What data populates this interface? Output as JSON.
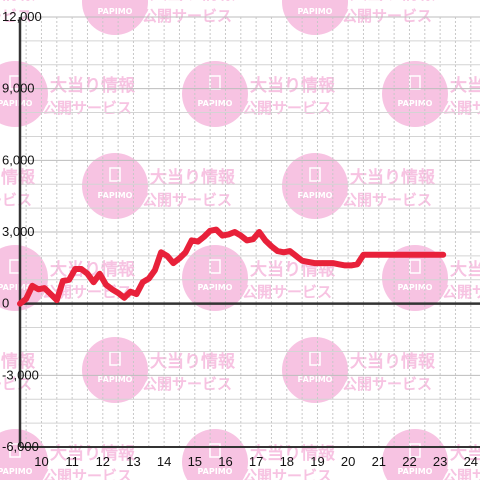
{
  "watermark": {
    "line1": "大当り情報",
    "line2": "公開サービス",
    "logo": "PAPIMO",
    "color": "#f7c3e2"
  },
  "chart_data": {
    "type": "line",
    "title": "",
    "xlabel": "",
    "ylabel": "",
    "xlim": [
      9.3,
      24.3
    ],
    "ylim": [
      -6000,
      12000
    ],
    "x_ticks": [
      "10",
      "11",
      "12",
      "13",
      "14",
      "15",
      "16",
      "17",
      "18",
      "19",
      "20",
      "21",
      "22",
      "23",
      "24"
    ],
    "y_ticks": [
      "12,000",
      "9,000",
      "6,000",
      "3,000",
      "0",
      "-3,000",
      "-6,000"
    ],
    "y_tick_values": [
      12000,
      9000,
      6000,
      3000,
      0,
      -3000,
      -6000
    ],
    "grid": true,
    "line_color": "#e8213a",
    "series": [
      {
        "x": [
          9.3,
          9.5,
          9.7,
          9.9,
          10.1,
          10.3,
          10.5,
          10.7,
          10.9,
          11.1,
          11.3,
          11.5,
          11.7,
          11.9,
          12.1,
          12.3,
          12.5,
          12.7,
          12.9,
          13.1,
          13.3,
          13.5,
          13.7,
          13.9,
          14.1,
          14.3,
          14.5,
          14.7,
          14.9,
          15.1,
          15.3,
          15.5,
          15.7,
          15.9,
          16.1,
          16.3,
          16.5,
          16.7,
          16.9,
          17.1,
          17.3,
          17.5,
          17.7,
          17.9,
          18.1,
          18.3,
          18.5,
          18.7,
          18.9,
          19.1,
          19.3,
          19.5,
          19.7,
          19.9,
          20.1,
          20.3,
          20.5,
          20.7,
          20.9,
          21.1,
          21.3,
          21.5,
          21.7,
          21.9,
          22.1,
          22.3,
          22.5,
          22.7,
          22.9,
          23.1
        ],
        "values": [
          0,
          200,
          750,
          600,
          650,
          400,
          150,
          950,
          1000,
          1450,
          1450,
          1250,
          900,
          1250,
          800,
          600,
          450,
          250,
          500,
          400,
          900,
          1050,
          1400,
          2150,
          2000,
          1700,
          1900,
          2150,
          2650,
          2600,
          2800,
          3050,
          3100,
          2850,
          2900,
          3000,
          2850,
          2650,
          2700,
          3000,
          2650,
          2400,
          2200,
          2150,
          2200,
          2000,
          1800,
          1750,
          1700,
          1700,
          1700,
          1700,
          1650,
          1600,
          1600,
          1650,
          2050,
          2050,
          2050,
          2050,
          2050,
          2050,
          2050,
          2050,
          2050,
          2050,
          2050,
          2050,
          2050,
          2050
        ]
      }
    ]
  }
}
